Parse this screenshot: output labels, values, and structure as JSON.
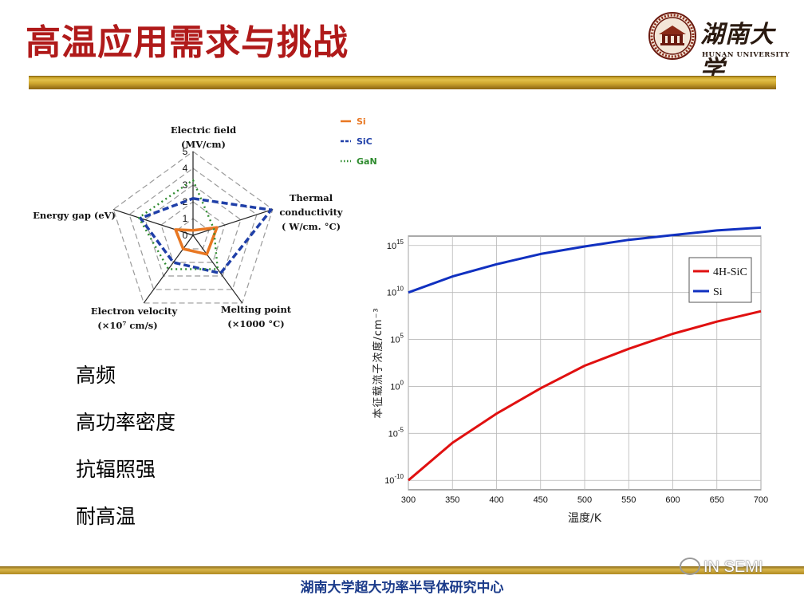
{
  "header": {
    "title": "高温应用需求与挑战",
    "logo_cn": "湖南大学",
    "logo_en": "HUNAN UNIVERSITY"
  },
  "bullets": [
    "高频",
    "高功率密度",
    "抗辐照强",
    "耐高温"
  ],
  "footer": {
    "text": "湖南大学超大功率半导体研究中心",
    "watermark": "IN SEMI"
  },
  "colors": {
    "title": "#b01a1a",
    "footer": "#1b3b8a",
    "gold": "#c9a227",
    "si": "#e87722",
    "sic": "#1f3fa8",
    "gan": "#2e8b2e",
    "sic_4h_line": "#e01010",
    "si_line": "#1030c0"
  },
  "chart_data": [
    {
      "type": "radar",
      "axes": [
        {
          "name": "Electric field",
          "unit": "(MV/cm)"
        },
        {
          "name": "Thermal conductivity",
          "unit": "( W/cm. °C)"
        },
        {
          "name": "Melting point",
          "unit": "(×1000 °C)"
        },
        {
          "name": "Electron velocity",
          "unit": "(×10⁷ cm/s)"
        },
        {
          "name": "Energy gap (eV)",
          "unit": ""
        }
      ],
      "rlim": [
        0,
        5
      ],
      "rticks": [
        "0",
        "1",
        "2",
        "3",
        "4",
        "5"
      ],
      "series": [
        {
          "name": "Si",
          "values": [
            0.3,
            1.5,
            1.4,
            1.0,
            1.1
          ]
        },
        {
          "name": "SiC",
          "values": [
            2.2,
            4.9,
            2.8,
            2.0,
            3.3
          ]
        },
        {
          "name": "GaN",
          "values": [
            3.3,
            1.3,
            2.5,
            2.5,
            3.4
          ]
        }
      ],
      "legend": "top-right"
    },
    {
      "type": "line",
      "x": [
        300,
        350,
        400,
        450,
        500,
        550,
        600,
        650,
        700
      ],
      "xlabel": "温度/K",
      "ylabel": "本征载流子浓度/cm⁻³",
      "y_scale": "log",
      "xlim": [
        300,
        700
      ],
      "ylim_exp": [
        -11,
        16
      ],
      "xticks": [
        "300",
        "350",
        "400",
        "450",
        "500",
        "550",
        "600",
        "650",
        "700"
      ],
      "yticks": [
        {
          "base": "10",
          "exp": "-10",
          "e": -10
        },
        {
          "base": "10",
          "exp": "-5",
          "e": -5
        },
        {
          "base": "10",
          "exp": "0",
          "e": 0
        },
        {
          "base": "10",
          "exp": "5",
          "e": 5
        },
        {
          "base": "10",
          "exp": "10",
          "e": 10
        },
        {
          "base": "10",
          "exp": "15",
          "e": 15
        }
      ],
      "series": [
        {
          "name": "4H-SiC",
          "log10_values": [
            -10.0,
            -6.0,
            -2.9,
            -0.2,
            2.2,
            4.0,
            5.6,
            6.9,
            8.0
          ]
        },
        {
          "name": "Si",
          "log10_values": [
            10.0,
            11.7,
            13.0,
            14.1,
            14.9,
            15.6,
            16.1,
            16.6,
            16.9
          ]
        }
      ],
      "grid": true,
      "legend": "top-right"
    }
  ]
}
